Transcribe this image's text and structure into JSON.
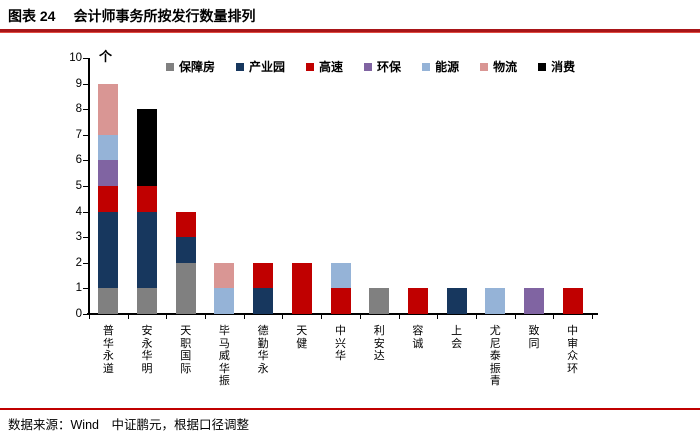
{
  "page": {
    "figure_label": "图表 24",
    "figure_title": "会计师事务所按发行数量排列",
    "source_note": "数据来源：Wind　中证鹏元，根据口径调整"
  },
  "theme": {
    "accent_red": "#C00000",
    "rule_thick_color": "#A81518",
    "rule_thin_color": "#E04B42",
    "axis_color": "#000000"
  },
  "chart_data": {
    "type": "bar",
    "stacked": true,
    "title": "会计师事务所按发行数量排列",
    "unit_label": "个",
    "xlabel": "",
    "ylabel": "个",
    "ylim": [
      0,
      10
    ],
    "ytick_step": 1,
    "grid": false,
    "legend_position": "top",
    "categories": [
      "普华永道",
      "安永华明",
      "天职国际",
      "毕马威华振",
      "德勤华永",
      "天健",
      "中兴华",
      "利安达",
      "容诚",
      "上会",
      "尤尼泰振青",
      "致同",
      "中审众环"
    ],
    "series": [
      {
        "name": "保障房",
        "color": "#808080",
        "values": [
          1,
          1,
          2,
          0,
          0,
          0,
          0,
          1,
          0,
          0,
          0,
          0,
          0
        ]
      },
      {
        "name": "产业园",
        "color": "#17375E",
        "values": [
          3,
          3,
          1,
          0,
          1,
          0,
          0,
          0,
          0,
          1,
          0,
          0,
          0
        ]
      },
      {
        "name": "高速",
        "color": "#C00000",
        "values": [
          1,
          1,
          1,
          0,
          1,
          2,
          1,
          0,
          1,
          0,
          0,
          0,
          1
        ]
      },
      {
        "name": "环保",
        "color": "#8064A2",
        "values": [
          1,
          0,
          0,
          0,
          0,
          0,
          0,
          0,
          0,
          0,
          0,
          1,
          0
        ]
      },
      {
        "name": "能源",
        "color": "#95B3D7",
        "values": [
          1,
          0,
          0,
          1,
          0,
          0,
          1,
          0,
          0,
          0,
          1,
          0,
          0
        ]
      },
      {
        "name": "物流",
        "color": "#D99694",
        "values": [
          2,
          0,
          0,
          1,
          0,
          0,
          0,
          0,
          0,
          0,
          0,
          0,
          0
        ]
      },
      {
        "name": "消费",
        "color": "#000000",
        "values": [
          0,
          3,
          0,
          0,
          0,
          0,
          0,
          0,
          0,
          0,
          0,
          0,
          0
        ]
      }
    ],
    "totals": [
      9,
      8,
      4,
      2,
      2,
      2,
      2,
      1,
      1,
      1,
      1,
      1,
      1
    ]
  }
}
